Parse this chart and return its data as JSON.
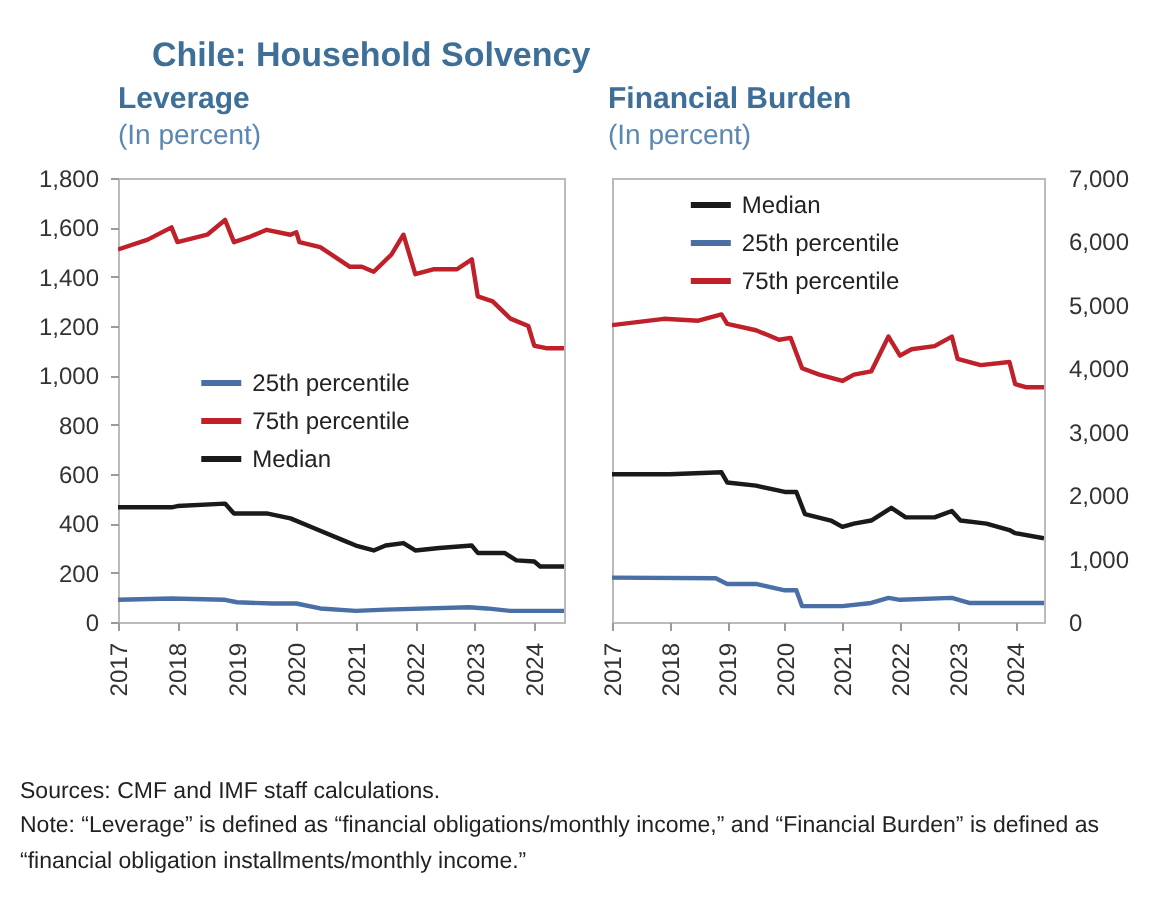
{
  "chart_data": [
    {
      "type": "line",
      "title": "Leverage",
      "subtitle": "(In percent)",
      "annotations": [
        "Chile: Household Solvency"
      ],
      "xlim": [
        2017,
        2024.5
      ],
      "xticks": [
        2017,
        2018,
        2019,
        2020,
        2021,
        2022,
        2023,
        2024
      ],
      "ylim": [
        0,
        1800
      ],
      "yticks": [
        0,
        200,
        400,
        600,
        800,
        {
          "value": 1000,
          "label": "1,000"
        },
        {
          "value": 1200,
          "label": "1,200"
        },
        {
          "value": 1400,
          "label": "1,400"
        },
        {
          "value": 1600,
          "label": "1,600"
        },
        {
          "value": 1800,
          "label": "1,800"
        }
      ],
      "grid": false,
      "legend": "center",
      "series": [
        {
          "name": "25th percentile",
          "color": "#4a6fa5",
          "x": [
            2017,
            2017.9,
            2018.8,
            2019.0,
            2019.6,
            2020.0,
            2020.4,
            2021.0,
            2021.5,
            2022.9,
            2023.2,
            2023.6,
            2024.5
          ],
          "values": [
            90,
            95,
            90,
            80,
            75,
            75,
            55,
            45,
            50,
            60,
            55,
            45,
            45
          ]
        },
        {
          "name": "75th percentile",
          "color": "#c0202a",
          "x": [
            2017,
            2017.5,
            2017.9,
            2018.0,
            2018.5,
            2018.8,
            2018.95,
            2019.2,
            2019.5,
            2019.9,
            2020.0,
            2020.05,
            2020.4,
            2020.9,
            2021.1,
            2021.3,
            2021.6,
            2021.8,
            2022.0,
            2022.3,
            2022.7,
            2022.95,
            2023.05,
            2023.3,
            2023.6,
            2023.9,
            2024.0,
            2024.2,
            2024.5
          ],
          "values": [
            1510,
            1550,
            1600,
            1540,
            1570,
            1630,
            1540,
            1560,
            1590,
            1570,
            1580,
            1540,
            1520,
            1440,
            1440,
            1420,
            1490,
            1570,
            1410,
            1430,
            1430,
            1470,
            1320,
            1300,
            1230,
            1200,
            1120,
            1110,
            1110
          ]
        },
        {
          "name": "Median",
          "color": "#1a1a1a",
          "x": [
            2017,
            2017.9,
            2018.0,
            2018.8,
            2018.95,
            2019.5,
            2019.9,
            2020.3,
            2020.8,
            2021.0,
            2021.3,
            2021.5,
            2021.8,
            2022.0,
            2022.4,
            2022.95,
            2023.05,
            2023.5,
            2023.7,
            2024.0,
            2024.1,
            2024.5
          ],
          "values": [
            465,
            465,
            470,
            480,
            440,
            440,
            420,
            380,
            330,
            310,
            290,
            310,
            320,
            290,
            300,
            310,
            280,
            280,
            250,
            245,
            225,
            225
          ]
        }
      ]
    },
    {
      "type": "line",
      "title": "Financial Burden",
      "subtitle": "(In percent)",
      "annotations": [
        "Sources: CMF and IMF staff calculations.",
        "Note: “Leverage” is defined as “financial obligations/monthly income,” and “Financial Burden” is defined as “financial obligation installments/monthly  income.”"
      ],
      "xlim": [
        2017,
        2024.5
      ],
      "xticks": [
        2017,
        2018,
        2019,
        2020,
        2021,
        2022,
        2023,
        2024
      ],
      "ylim": [
        0,
        7000
      ],
      "yticks": [
        0,
        {
          "value": 1000,
          "label": "1,000"
        },
        {
          "value": 2000,
          "label": "2,000"
        },
        {
          "value": 3000,
          "label": "3,000"
        },
        {
          "value": 4000,
          "label": "4,000"
        },
        {
          "value": 5000,
          "label": "5,000"
        },
        {
          "value": 6000,
          "label": "6,000"
        },
        {
          "value": 7000,
          "label": "7,000"
        }
      ],
      "grid": false,
      "legend": "top",
      "series": [
        {
          "name": "Median",
          "color": "#1a1a1a",
          "x": [
            2017,
            2018.0,
            2018.9,
            2019.0,
            2019.5,
            2020.0,
            2020.2,
            2020.35,
            2020.8,
            2021.0,
            2021.2,
            2021.5,
            2021.85,
            2022.1,
            2022.6,
            2022.9,
            2023.05,
            2023.5,
            2023.9,
            2024.0,
            2024.5
          ],
          "values": [
            2330,
            2330,
            2360,
            2200,
            2150,
            2050,
            2050,
            1700,
            1600,
            1500,
            1550,
            1600,
            1800,
            1650,
            1650,
            1750,
            1600,
            1550,
            1450,
            1400,
            1320
          ]
        },
        {
          "name": "25th percentile",
          "color": "#4a6fa5",
          "x": [
            2017,
            2018.8,
            2019.0,
            2019.5,
            2020.0,
            2020.2,
            2020.3,
            2021.0,
            2021.5,
            2021.8,
            2022.0,
            2022.9,
            2023.2,
            2024.0,
            2024.5
          ],
          "values": [
            700,
            690,
            600,
            600,
            500,
            500,
            250,
            250,
            300,
            380,
            350,
            380,
            300,
            300,
            300
          ]
        },
        {
          "name": "75th percentile",
          "color": "#c0202a",
          "x": [
            2017,
            2017.9,
            2018.5,
            2018.9,
            2019.0,
            2019.5,
            2019.9,
            2020.1,
            2020.3,
            2020.6,
            2021.0,
            2021.2,
            2021.5,
            2021.8,
            2022.0,
            2022.2,
            2022.6,
            2022.9,
            2023.0,
            2023.4,
            2023.9,
            2024.0,
            2024.2,
            2024.5
          ],
          "values": [
            4680,
            4780,
            4750,
            4850,
            4700,
            4600,
            4450,
            4480,
            4000,
            3900,
            3800,
            3900,
            3950,
            4500,
            4200,
            4300,
            4350,
            4500,
            4150,
            4050,
            4100,
            3750,
            3700,
            3700
          ]
        }
      ]
    }
  ]
}
